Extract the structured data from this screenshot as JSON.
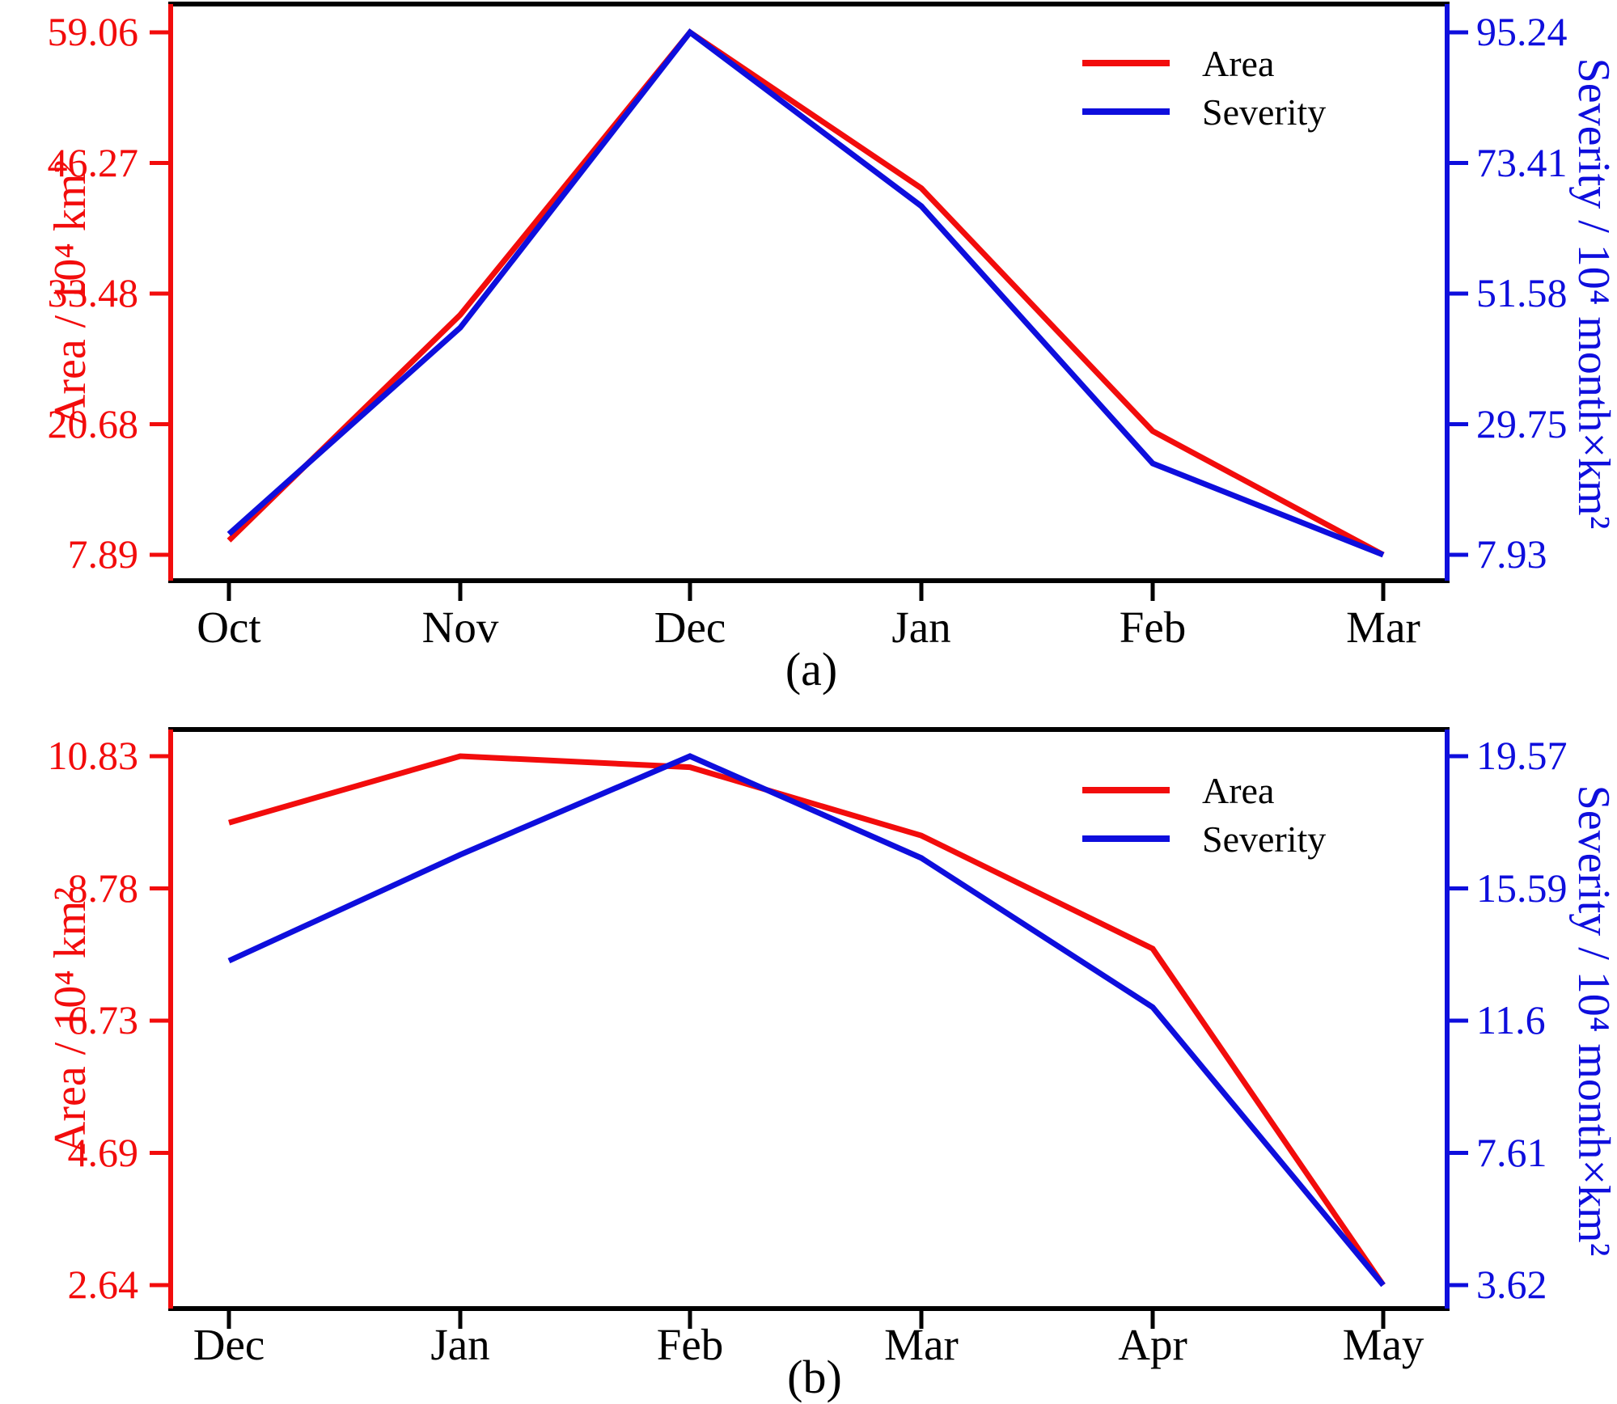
{
  "figure": {
    "captions": {
      "a": "(a)",
      "b": "(b)"
    },
    "colors": {
      "area": "#f20c0c",
      "severity": "#0e0edd",
      "frame": "#000000"
    }
  },
  "chart_data": [
    {
      "type": "line",
      "panel": "a",
      "caption": "(a)",
      "categories": [
        "Oct",
        "Nov",
        "Dec",
        "Jan",
        "Feb",
        "Mar"
      ],
      "series": [
        {
          "name": "Area",
          "axis": "left",
          "color": "#f20c0c",
          "values": [
            9.3,
            31.4,
            59.06,
            43.8,
            20.0,
            7.89
          ]
        },
        {
          "name": "Severity",
          "axis": "right",
          "color": "#0e0edd",
          "values": [
            11.4,
            45.9,
            95.24,
            66.2,
            23.2,
            7.93
          ]
        }
      ],
      "left_axis": {
        "label": "Area / 10⁴ km²",
        "color": "#f20c0c",
        "ticks": [
          7.89,
          20.68,
          33.48,
          46.27,
          59.06
        ],
        "range": [
          7.89,
          59.06
        ]
      },
      "right_axis": {
        "label": "Severity / 10⁴ month×km²",
        "color": "#0e0edd",
        "ticks": [
          7.93,
          29.75,
          51.58,
          73.41,
          95.24
        ],
        "range": [
          7.93,
          95.24
        ]
      },
      "legend_position": "top-right",
      "grid": false,
      "xlabel": "",
      "title": ""
    },
    {
      "type": "line",
      "panel": "b",
      "caption": "(b)",
      "categories": [
        "Dec",
        "Jan",
        "Feb",
        "Mar",
        "Apr",
        "May"
      ],
      "series": [
        {
          "name": "Area",
          "axis": "left",
          "color": "#f20c0c",
          "values": [
            9.8,
            10.83,
            10.66,
            9.6,
            7.85,
            2.64
          ]
        },
        {
          "name": "Severity",
          "axis": "right",
          "color": "#0e0edd",
          "values": [
            13.4,
            16.6,
            19.57,
            16.5,
            12.0,
            3.62
          ]
        }
      ],
      "left_axis": {
        "label": "Area / 10⁴ km²",
        "color": "#f20c0c",
        "ticks": [
          2.64,
          4.69,
          6.73,
          8.78,
          10.83
        ],
        "range": [
          2.64,
          10.83
        ]
      },
      "right_axis": {
        "label": "Severity / 10⁴ month×km²",
        "color": "#0e0edd",
        "ticks": [
          3.62,
          7.61,
          11.6,
          15.59,
          19.57
        ],
        "range": [
          3.62,
          19.57
        ]
      },
      "legend_position": "top-right",
      "grid": false,
      "xlabel": "",
      "title": ""
    }
  ]
}
